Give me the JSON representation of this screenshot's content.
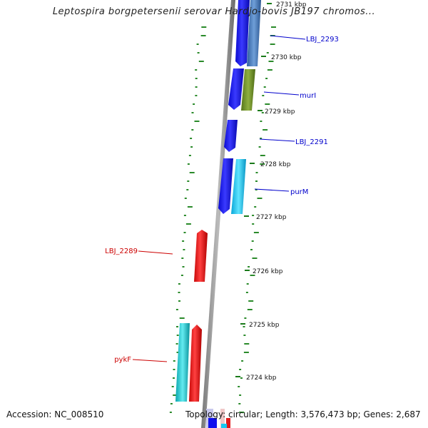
{
  "header": {
    "title": "Leptospira borgpetersenii serovar Hardjo-bovis JB197 chromos..."
  },
  "footer": {
    "accession": "Accession: NC_008510",
    "summary": "Topology: circular; Length: 3,576,473 bp; Genes: 2,687"
  },
  "ticks": {
    "top": "2731 kbp",
    "k2730": "2730 kbp",
    "k2729": "2729 kbp",
    "k2728": "2728 kbp",
    "k2727": "2727 kbp",
    "k2726": "2726 kbp",
    "k2725": "2725 kbp",
    "k2724": "2724 kbp"
  },
  "genes": {
    "lbj2293": "LBJ_2293",
    "murI": "murI",
    "lbj2291": "LBJ_2291",
    "purM": "purM",
    "lbj2289": "LBJ_2289",
    "pykF": "pykF"
  },
  "colors": {
    "forward_cds": "#1010ee",
    "reverse_cds": "#ee1010",
    "forward_cog_blue": "#4a7fc0",
    "cog_olive": "#6b8e23",
    "cog_cyan": "#16c8f0",
    "cog_teal": "#15c0c8",
    "label_forward": "#0000cc",
    "label_reverse": "#cc0000",
    "gc_skew": "#2a8a2a",
    "backbone": "#888888"
  }
}
